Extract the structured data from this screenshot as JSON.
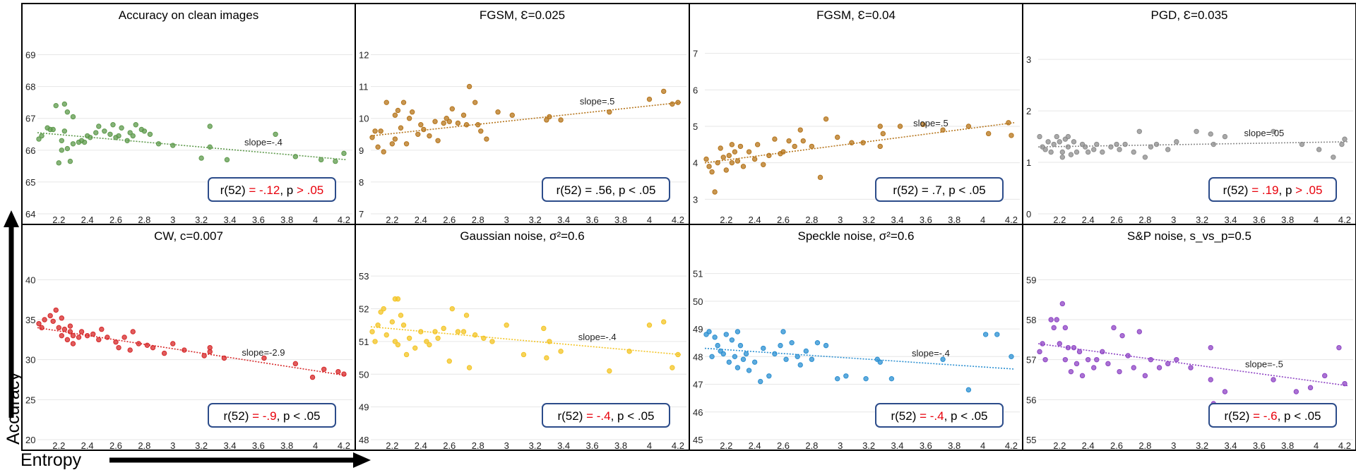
{
  "figure": {
    "ylabel": "Accuracy",
    "xlabel": "Entropy",
    "xticks": [
      "2.2",
      "2.4",
      "2.6",
      "2.8",
      "3",
      "3.2",
      "3.4",
      "3.6",
      "3.8",
      "4",
      "4.2"
    ]
  },
  "chart_data": [
    {
      "type": "scatter",
      "title": "Accuracy on clean images",
      "color": "#5e9a4c",
      "xlim": [
        2.05,
        4.22
      ],
      "ylim": [
        64,
        69.5
      ],
      "yticks": [
        64,
        65,
        66,
        67,
        68,
        69
      ],
      "slope_label": "slope=-.4",
      "trend": [
        [
          2.05,
          66.55
        ],
        [
          4.22,
          65.7
        ]
      ],
      "stat": {
        "pre": "r(52) ",
        "r": "= -.12",
        "mid": ", p ",
        "p": "> .05",
        "post": "",
        "r_red": true,
        "p_red": true
      },
      "x": [
        2.06,
        2.08,
        2.12,
        2.14,
        2.16,
        2.18,
        2.2,
        2.22,
        2.22,
        2.24,
        2.24,
        2.26,
        2.26,
        2.28,
        2.3,
        2.3,
        2.34,
        2.36,
        2.38,
        2.4,
        2.42,
        2.46,
        2.48,
        2.52,
        2.56,
        2.58,
        2.6,
        2.62,
        2.64,
        2.68,
        2.7,
        2.72,
        2.74,
        2.78,
        2.8,
        2.84,
        2.9,
        3.0,
        3.2,
        3.26,
        3.26,
        3.38,
        3.72,
        3.86,
        4.04,
        4.14,
        4.2
      ],
      "y": [
        66.35,
        66.45,
        66.7,
        66.65,
        66.65,
        67.4,
        65.6,
        66.3,
        66.0,
        67.45,
        66.6,
        67.2,
        66.05,
        65.65,
        66.2,
        67.05,
        66.25,
        66.3,
        66.25,
        66.45,
        66.4,
        66.55,
        66.75,
        66.6,
        66.5,
        66.8,
        66.4,
        66.45,
        66.7,
        66.3,
        66.55,
        66.45,
        66.8,
        66.65,
        66.6,
        66.5,
        66.2,
        66.15,
        65.75,
        66.75,
        66.1,
        65.7,
        66.5,
        65.8,
        65.7,
        65.65,
        65.9
      ]
    },
    {
      "type": "scatter",
      "title": "FGSM, Ɛ=0.025",
      "color": "#b5741a",
      "xlim": [
        2.05,
        4.22
      ],
      "ylim": [
        7,
        12.5
      ],
      "yticks": [
        7,
        8,
        9,
        10,
        11,
        12
      ],
      "slope_label": "slope=.5",
      "trend": [
        [
          2.05,
          9.45
        ],
        [
          4.22,
          10.5
        ]
      ],
      "stat": {
        "pre": "r(52) = .56, p < .05",
        "r": "",
        "mid": "",
        "p": "",
        "post": "",
        "r_red": false,
        "p_red": false
      },
      "x": [
        2.06,
        2.08,
        2.1,
        2.12,
        2.14,
        2.16,
        2.2,
        2.22,
        2.22,
        2.24,
        2.26,
        2.28,
        2.3,
        2.32,
        2.34,
        2.38,
        2.4,
        2.42,
        2.46,
        2.5,
        2.52,
        2.56,
        2.58,
        2.6,
        2.62,
        2.66,
        2.7,
        2.72,
        2.74,
        2.78,
        2.8,
        2.82,
        2.86,
        2.94,
        3.04,
        3.28,
        3.3,
        3.38,
        3.72,
        4.0,
        4.1,
        4.16,
        4.2
      ],
      "y": [
        9.4,
        9.6,
        9.1,
        9.6,
        8.95,
        10.5,
        9.2,
        10.1,
        9.35,
        10.25,
        9.7,
        10.5,
        9.2,
        10.0,
        10.2,
        9.5,
        9.8,
        9.65,
        9.45,
        9.9,
        9.3,
        9.85,
        10.0,
        9.9,
        10.3,
        9.85,
        10.1,
        9.8,
        11.0,
        10.5,
        9.8,
        9.6,
        9.35,
        10.2,
        10.1,
        9.95,
        10.05,
        9.95,
        10.2,
        10.6,
        10.85,
        10.45,
        10.5
      ]
    },
    {
      "type": "scatter",
      "title": "FGSM, Ɛ=0.04",
      "color": "#b5741a",
      "xlim": [
        2.05,
        4.22
      ],
      "ylim": [
        2.6,
        7.4
      ],
      "yticks": [
        3,
        4,
        5,
        6,
        7
      ],
      "slope_label": "slope=.5",
      "trend": [
        [
          2.05,
          4.0
        ],
        [
          4.22,
          5.1
        ]
      ],
      "stat": {
        "pre": "r(52) = .7, p < .05",
        "r": "",
        "mid": "",
        "p": "",
        "post": "",
        "r_red": false,
        "p_red": false
      },
      "x": [
        2.06,
        2.08,
        2.1,
        2.12,
        2.14,
        2.16,
        2.18,
        2.2,
        2.22,
        2.24,
        2.24,
        2.26,
        2.28,
        2.3,
        2.32,
        2.36,
        2.4,
        2.42,
        2.46,
        2.5,
        2.54,
        2.58,
        2.6,
        2.64,
        2.68,
        2.72,
        2.74,
        2.8,
        2.86,
        2.9,
        2.98,
        3.08,
        3.16,
        3.28,
        3.28,
        3.3,
        3.42,
        3.58,
        3.72,
        3.9,
        4.04,
        4.18,
        4.2
      ],
      "y": [
        4.1,
        3.9,
        3.75,
        3.2,
        4.0,
        4.4,
        4.15,
        3.8,
        4.2,
        4.5,
        4.0,
        4.3,
        4.05,
        4.45,
        3.9,
        4.3,
        4.1,
        4.5,
        3.95,
        4.2,
        4.65,
        4.25,
        4.3,
        4.6,
        4.45,
        4.9,
        4.6,
        4.45,
        3.6,
        5.2,
        4.7,
        4.55,
        4.55,
        5.0,
        4.45,
        4.8,
        5.0,
        5.05,
        4.9,
        5.0,
        4.8,
        5.1,
        4.75
      ]
    },
    {
      "type": "scatter",
      "title": "PGD, Ɛ=0.035",
      "color": "#8c8c8c",
      "xlim": [
        2.05,
        4.22
      ],
      "ylim": [
        0,
        3.4
      ],
      "yticks": [
        0,
        1,
        2,
        3
      ],
      "slope_label": "slope=.05",
      "trend": [
        [
          2.05,
          1.3
        ],
        [
          4.22,
          1.4
        ]
      ],
      "stat": {
        "pre": "r(52) ",
        "r": "= .19",
        "mid": ", p ",
        "p": "> .05",
        "post": "",
        "r_red": true,
        "p_red": true
      },
      "x": [
        2.06,
        2.08,
        2.1,
        2.12,
        2.14,
        2.16,
        2.18,
        2.2,
        2.22,
        2.22,
        2.24,
        2.26,
        2.26,
        2.28,
        2.3,
        2.32,
        2.36,
        2.38,
        2.4,
        2.44,
        2.46,
        2.5,
        2.56,
        2.6,
        2.62,
        2.66,
        2.72,
        2.76,
        2.8,
        2.84,
        2.88,
        2.96,
        3.02,
        3.16,
        3.26,
        3.28,
        3.36,
        3.7,
        3.9,
        4.02,
        4.12,
        4.18,
        4.2
      ],
      "y": [
        1.5,
        1.3,
        1.25,
        1.4,
        1.2,
        1.35,
        1.5,
        1.4,
        1.2,
        1.1,
        1.45,
        1.3,
        1.5,
        1.15,
        1.4,
        1.2,
        1.35,
        1.3,
        1.2,
        1.25,
        1.35,
        1.2,
        1.3,
        1.35,
        1.25,
        1.35,
        1.2,
        1.6,
        1.1,
        1.3,
        1.35,
        1.25,
        1.4,
        1.6,
        1.55,
        1.35,
        1.5,
        1.6,
        1.35,
        1.25,
        1.1,
        1.35,
        1.45
      ]
    },
    {
      "type": "scatter",
      "title": "CW, c=0.007",
      "color": "#d62728",
      "xlim": [
        2.05,
        4.22
      ],
      "ylim": [
        20,
        42.5
      ],
      "yticks": [
        20,
        25,
        30,
        35,
        40
      ],
      "slope_label": "slope=-2.9",
      "trend": [
        [
          2.05,
          34.0
        ],
        [
          4.22,
          28.0
        ]
      ],
      "stat": {
        "pre": "r(52) ",
        "r": "= -.9",
        "mid": ", p < .05",
        "p": "",
        "post": "",
        "r_red": true,
        "p_red": false
      },
      "x": [
        2.06,
        2.08,
        2.1,
        2.14,
        2.16,
        2.18,
        2.2,
        2.22,
        2.22,
        2.24,
        2.26,
        2.28,
        2.28,
        2.3,
        2.3,
        2.34,
        2.36,
        2.4,
        2.44,
        2.48,
        2.5,
        2.54,
        2.6,
        2.62,
        2.66,
        2.7,
        2.72,
        2.76,
        2.82,
        2.86,
        2.94,
        3.0,
        3.08,
        3.22,
        3.26,
        3.26,
        3.36,
        3.64,
        3.86,
        3.98,
        4.06,
        4.16,
        4.2
      ],
      "y": [
        34.5,
        34.0,
        35.0,
        35.5,
        34.8,
        36.2,
        34.0,
        33.0,
        35.2,
        33.8,
        32.5,
        33.5,
        34.2,
        32.0,
        33.0,
        32.8,
        33.5,
        33.0,
        33.2,
        32.5,
        33.8,
        32.8,
        32.2,
        31.5,
        32.8,
        31.2,
        33.5,
        32.0,
        31.8,
        31.5,
        30.8,
        32.0,
        31.2,
        30.5,
        31.0,
        31.5,
        30.2,
        30.2,
        29.5,
        27.8,
        28.8,
        28.5,
        28.2
      ]
    },
    {
      "type": "scatter",
      "title": "Gaussian noise, σ²=0.6",
      "color": "#f3c424",
      "xlim": [
        2.05,
        4.22
      ],
      "ylim": [
        48,
        53.5
      ],
      "yticks": [
        48,
        49,
        50,
        51,
        52,
        53
      ],
      "slope_label": "slope=-.4",
      "trend": [
        [
          2.05,
          51.45
        ],
        [
          4.22,
          50.6
        ]
      ],
      "stat": {
        "pre": "r(52) ",
        "r": "= -.4",
        "mid": ", p < .05",
        "p": "",
        "post": "",
        "r_red": true,
        "p_red": false
      },
      "x": [
        2.06,
        2.08,
        2.1,
        2.12,
        2.14,
        2.16,
        2.2,
        2.22,
        2.22,
        2.24,
        2.24,
        2.26,
        2.28,
        2.3,
        2.32,
        2.36,
        2.4,
        2.44,
        2.46,
        2.5,
        2.52,
        2.56,
        2.6,
        2.62,
        2.66,
        2.7,
        2.72,
        2.74,
        2.78,
        2.84,
        2.9,
        3.0,
        3.12,
        3.26,
        3.28,
        3.3,
        3.38,
        3.72,
        3.86,
        4.0,
        4.1,
        4.16,
        4.2
      ],
      "y": [
        51.3,
        51.0,
        51.5,
        51.9,
        52.0,
        51.2,
        51.6,
        52.3,
        51.0,
        52.3,
        50.9,
        51.8,
        51.5,
        50.6,
        51.1,
        50.8,
        51.3,
        51.0,
        50.9,
        51.3,
        51.1,
        51.4,
        50.4,
        52.0,
        51.3,
        51.3,
        51.8,
        50.2,
        51.2,
        51.1,
        51.0,
        51.5,
        50.6,
        51.4,
        50.5,
        51.0,
        50.7,
        50.1,
        50.7,
        51.5,
        51.6,
        50.2,
        50.6
      ]
    },
    {
      "type": "scatter",
      "title": "Speckle noise, σ²=0.6",
      "color": "#2a8fd1",
      "xlim": [
        2.05,
        4.22
      ],
      "ylim": [
        45,
        51.5
      ],
      "yticks": [
        45,
        46,
        47,
        48,
        49,
        50,
        51
      ],
      "slope_label": "slope=-.4",
      "trend": [
        [
          2.05,
          48.3
        ],
        [
          4.22,
          47.55
        ]
      ],
      "stat": {
        "pre": "r(52) ",
        "r": "= -.4",
        "mid": ", p < .05",
        "p": "",
        "post": "",
        "r_red": true,
        "p_red": false
      },
      "x": [
        2.06,
        2.08,
        2.1,
        2.12,
        2.14,
        2.16,
        2.18,
        2.2,
        2.22,
        2.24,
        2.26,
        2.28,
        2.28,
        2.3,
        2.32,
        2.34,
        2.36,
        2.4,
        2.44,
        2.46,
        2.5,
        2.54,
        2.58,
        2.6,
        2.62,
        2.66,
        2.7,
        2.72,
        2.76,
        2.8,
        2.84,
        2.9,
        2.98,
        3.04,
        3.18,
        3.26,
        3.28,
        3.36,
        3.72,
        3.9,
        4.02,
        4.1,
        4.2
      ],
      "y": [
        48.8,
        48.9,
        48.0,
        48.7,
        48.4,
        48.2,
        48.1,
        48.8,
        47.8,
        48.6,
        48.0,
        48.9,
        47.6,
        48.4,
        47.9,
        48.1,
        47.5,
        47.8,
        47.1,
        48.3,
        47.3,
        48.1,
        48.4,
        48.9,
        47.9,
        48.5,
        48.0,
        47.7,
        48.2,
        47.9,
        48.5,
        48.4,
        47.2,
        47.3,
        47.2,
        47.9,
        47.8,
        47.2,
        47.9,
        46.8,
        48.8,
        48.8,
        48.0
      ]
    },
    {
      "type": "scatter",
      "title": "S&P noise, s_vs_p=0.5",
      "color": "#8e44c4",
      "xlim": [
        2.05,
        4.22
      ],
      "ylim": [
        55,
        59.5
      ],
      "yticks": [
        55,
        56,
        57,
        58,
        59
      ],
      "slope_label": "slope=-.5",
      "trend": [
        [
          2.05,
          57.4
        ],
        [
          4.22,
          56.35
        ]
      ],
      "stat": {
        "pre": "r(52) ",
        "r": "= -.6",
        "mid": ", p < .05",
        "p": "",
        "post": "",
        "r_red": true,
        "p_red": false
      },
      "x": [
        2.06,
        2.08,
        2.1,
        2.14,
        2.16,
        2.18,
        2.2,
        2.22,
        2.24,
        2.24,
        2.26,
        2.28,
        2.3,
        2.32,
        2.34,
        2.36,
        2.4,
        2.44,
        2.46,
        2.5,
        2.54,
        2.58,
        2.62,
        2.64,
        2.68,
        2.72,
        2.76,
        2.8,
        2.84,
        2.9,
        2.96,
        3.02,
        3.12,
        3.26,
        3.26,
        3.28,
        3.36,
        3.7,
        3.86,
        3.96,
        4.06,
        4.16,
        4.2
      ],
      "y": [
        57.2,
        57.4,
        57.0,
        58.0,
        57.8,
        58.0,
        57.4,
        58.4,
        57.0,
        57.8,
        57.3,
        56.7,
        57.3,
        56.9,
        57.2,
        56.6,
        57.0,
        56.8,
        57.0,
        57.2,
        56.9,
        57.8,
        56.7,
        57.6,
        57.1,
        56.8,
        57.7,
        56.6,
        57.0,
        56.8,
        56.9,
        57.0,
        56.8,
        57.3,
        56.5,
        55.9,
        56.2,
        56.5,
        56.2,
        56.3,
        56.6,
        57.3,
        56.4
      ]
    }
  ]
}
